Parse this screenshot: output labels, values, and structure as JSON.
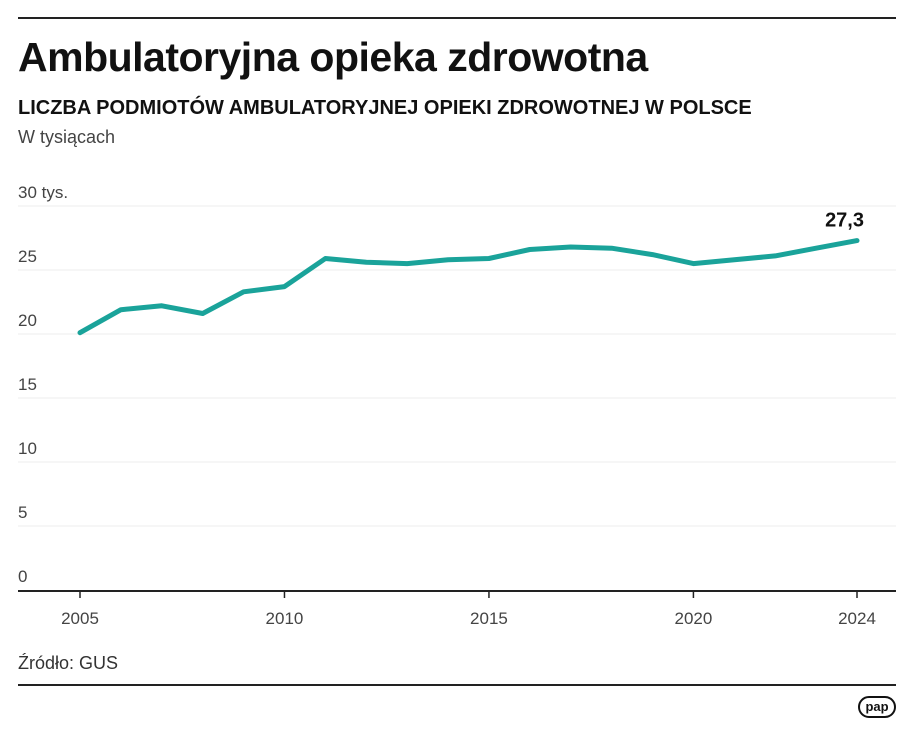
{
  "header": {
    "title": "Ambulatoryjna opieka zdrowotna",
    "subtitle": "LICZBA PODMIOTÓW AMBULATORYJNEJ OPIEKI ZDROWOTNEJ W POLSCE",
    "unit": "W tysiącach"
  },
  "footer": {
    "source": "Źródło: GUS",
    "logo": "pap"
  },
  "chart_data": {
    "type": "line",
    "title": "Ambulatoryjna opieka zdrowotna",
    "subtitle": "LICZBA PODMIOTÓW AMBULATORYJNEJ OPIEKI ZDROWOTNEJ W POLSCE",
    "ylabel": "W tysiącach",
    "x": [
      2005,
      2006,
      2007,
      2008,
      2009,
      2010,
      2011,
      2012,
      2013,
      2014,
      2015,
      2016,
      2017,
      2018,
      2019,
      2020,
      2021,
      2022,
      2023,
      2024
    ],
    "series": [
      {
        "values": [
          20.1,
          21.9,
          22.2,
          21.6,
          23.3,
          23.7,
          25.9,
          25.6,
          25.5,
          25.8,
          25.9,
          26.6,
          26.8,
          26.7,
          26.2,
          25.5,
          25.8,
          26.1,
          26.7,
          27.3
        ]
      }
    ],
    "ylim": [
      0,
      30
    ],
    "xlim": [
      2005,
      2024
    ],
    "yticks": [
      0,
      5,
      10,
      15,
      20,
      25,
      30
    ],
    "ytick_labels": [
      "0",
      "5",
      "10",
      "15",
      "20",
      "25",
      "30 tys."
    ],
    "xticks": [
      2005,
      2010,
      2015,
      2020,
      2024
    ],
    "xtick_labels": [
      "2005",
      "2010",
      "2015",
      "2020",
      "2024"
    ],
    "annotations": [
      {
        "x": 2024,
        "label": "27,3"
      }
    ],
    "grid": true,
    "line_color": "#1aa39a"
  }
}
